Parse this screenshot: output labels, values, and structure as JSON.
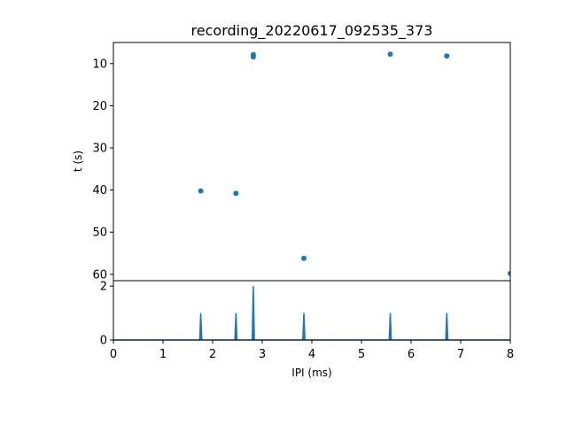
{
  "chart_data": [
    {
      "type": "scatter",
      "title": "recording_20220617_092535_373",
      "xlabel": "",
      "ylabel": "t (s)",
      "xlim": [
        0,
        8
      ],
      "ylim": [
        61.5,
        5
      ],
      "y_inverted": true,
      "yticks": [
        10,
        20,
        30,
        40,
        50,
        60
      ],
      "points": [
        {
          "x": 2.82,
          "y": 7.9
        },
        {
          "x": 2.82,
          "y": 8.4
        },
        {
          "x": 5.58,
          "y": 7.8
        },
        {
          "x": 6.72,
          "y": 8.2
        },
        {
          "x": 1.76,
          "y": 40.2
        },
        {
          "x": 2.47,
          "y": 40.8
        },
        {
          "x": 3.84,
          "y": 56.2
        },
        {
          "x": 8.0,
          "y": 59.8
        }
      ],
      "color": "#1f77b4",
      "grid": false
    },
    {
      "type": "line",
      "title": "",
      "xlabel": "IPI (ms)",
      "ylabel": "",
      "xlim": [
        0,
        8
      ],
      "ylim": [
        0,
        2.2
      ],
      "xticks": [
        0,
        1,
        2,
        3,
        4,
        5,
        6,
        7,
        8
      ],
      "yticks": [
        0,
        2
      ],
      "peaks": [
        {
          "x": 1.76,
          "value": 1
        },
        {
          "x": 2.47,
          "value": 1
        },
        {
          "x": 2.82,
          "value": 2
        },
        {
          "x": 3.84,
          "value": 1
        },
        {
          "x": 5.58,
          "value": 1
        },
        {
          "x": 6.72,
          "value": 1
        }
      ],
      "baseline": 0,
      "color": "#1f77b4",
      "grid": false
    }
  ]
}
